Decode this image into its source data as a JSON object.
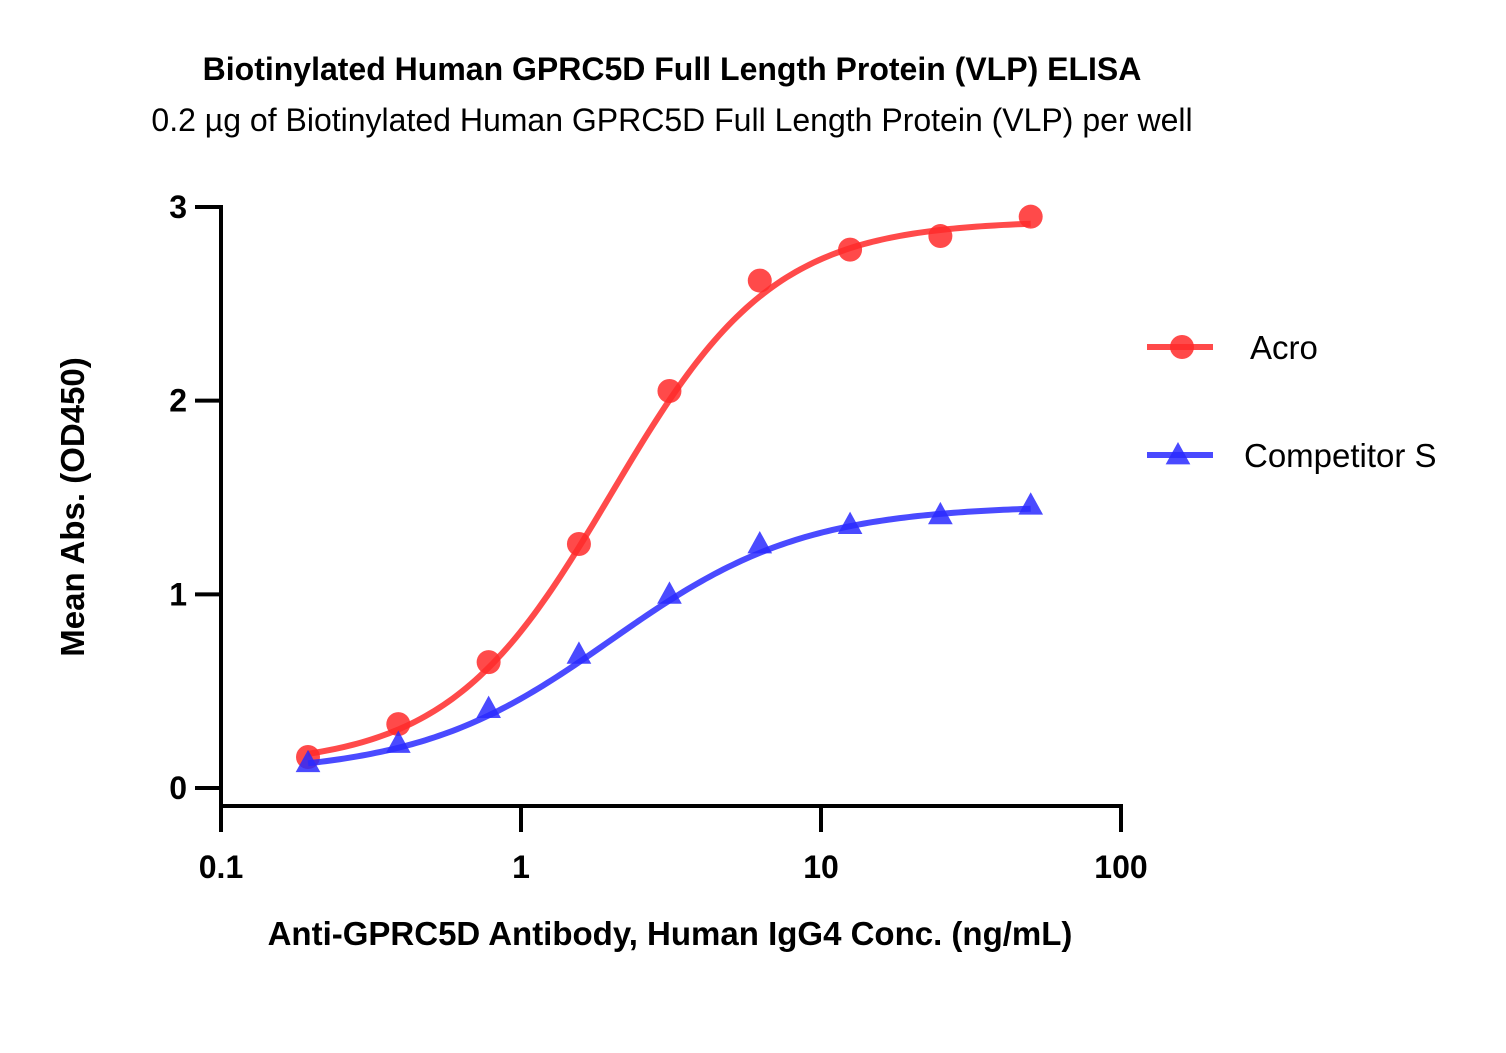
{
  "chart_data": {
    "type": "line",
    "title": "Biotinylated Human GPRC5D Full Length Protein (VLP) ELISA",
    "subtitle": "0.2 µg of Biotinylated Human GPRC5D Full Length Protein (VLP) per well",
    "xlabel": "Anti-GPRC5D Antibody, Human IgG4 Conc. (ng/mL)",
    "ylabel": "Mean Abs. (OD450)",
    "x_scale": "log",
    "xlim": [
      0.1,
      100
    ],
    "ylim": [
      0,
      3
    ],
    "x_ticks": [
      0.1,
      1,
      10,
      100
    ],
    "x_tick_labels": [
      "0.1",
      "1",
      "10",
      "100"
    ],
    "y_ticks": [
      0,
      1,
      2,
      3
    ],
    "y_tick_labels": [
      "0",
      "1",
      "2",
      "3"
    ],
    "grid": false,
    "legend_position": "right",
    "series": [
      {
        "name": "Acro",
        "color": "#ff2a2a",
        "marker": "circle",
        "x": [
          0.195,
          0.39,
          0.78,
          1.56,
          3.125,
          6.25,
          12.5,
          25,
          50
        ],
        "y": [
          0.16,
          0.33,
          0.65,
          1.26,
          2.05,
          2.62,
          2.78,
          2.85,
          2.95
        ],
        "fit": {
          "bottom": 0.11,
          "top": 2.93,
          "ec50": 2.0,
          "hill": 1.6
        }
      },
      {
        "name": "Competitor S",
        "color": "#2a2aff",
        "marker": "triangle",
        "x": [
          0.195,
          0.39,
          0.78,
          1.56,
          3.125,
          6.25,
          12.5,
          25,
          50
        ],
        "y": [
          0.13,
          0.23,
          0.41,
          0.69,
          1.0,
          1.26,
          1.36,
          1.41,
          1.46
        ],
        "fit": {
          "bottom": 0.07,
          "top": 1.46,
          "ec50": 2.0,
          "hill": 1.35
        }
      }
    ]
  }
}
